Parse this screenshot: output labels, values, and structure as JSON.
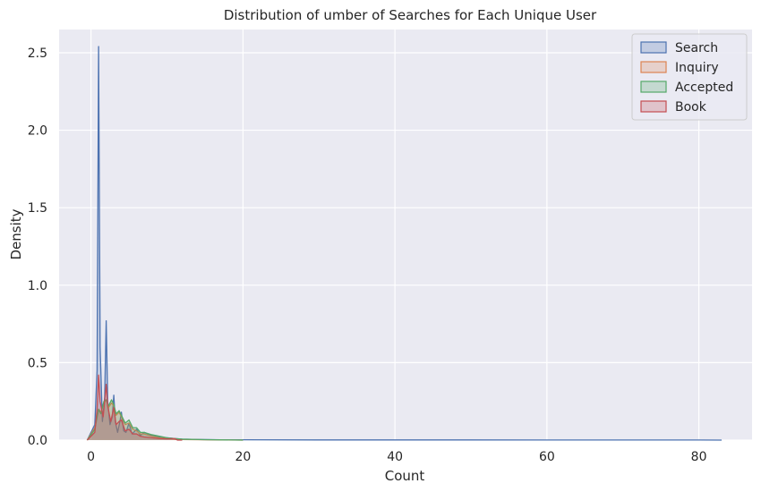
{
  "chart_data": {
    "type": "area",
    "title": "Distribution of umber of Searches for Each Unique User",
    "xlabel": "Count",
    "ylabel": "Density",
    "xlim": [
      -4.2,
      87
    ],
    "ylim": [
      0,
      2.65
    ],
    "xticks": [
      0,
      20,
      40,
      60,
      80
    ],
    "yticks": [
      0.0,
      0.5,
      1.0,
      1.5,
      2.0,
      2.5
    ],
    "xtick_labels": [
      "0",
      "20",
      "40",
      "60",
      "80"
    ],
    "ytick_labels": [
      "0.0",
      "0.5",
      "1.0",
      "1.5",
      "2.0",
      "2.5"
    ],
    "grid": true,
    "legend_position": "top-right",
    "background": "#EAEAF2",
    "series": [
      {
        "name": "Search",
        "color": "#4C72B0",
        "fill": "#4C72B0",
        "x": [
          -0.5,
          0.5,
          0.8,
          1.0,
          1.2,
          1.5,
          1.8,
          2.0,
          2.2,
          2.5,
          2.8,
          3.0,
          3.2,
          3.5,
          3.8,
          4.0,
          4.3,
          4.6,
          5.0,
          5.4,
          6.0,
          6.5,
          7.0,
          8.0,
          9.0,
          10.0,
          11.0,
          12.0,
          14.0,
          17.0,
          20.0,
          30.0,
          40.0,
          50.0,
          60.0,
          70.0,
          80.0,
          83.0
        ],
        "y": [
          0.0,
          0.1,
          0.45,
          2.54,
          0.6,
          0.12,
          0.28,
          0.77,
          0.25,
          0.1,
          0.15,
          0.29,
          0.12,
          0.05,
          0.12,
          0.18,
          0.06,
          0.05,
          0.11,
          0.04,
          0.07,
          0.03,
          0.05,
          0.03,
          0.02,
          0.015,
          0.01,
          0.006,
          0.004,
          0.002,
          0.002,
          0.001,
          0.001,
          0.001,
          0.0005,
          0.0005,
          0.0005,
          0.0
        ]
      },
      {
        "name": "Inquiry",
        "color": "#DD8452",
        "fill": "#DD8452",
        "x": [
          -0.5,
          0.5,
          1.0,
          1.3,
          1.7,
          2.0,
          2.3,
          2.7,
          3.0,
          3.3,
          3.7,
          4.0,
          4.5,
          5.0,
          5.5,
          6.0,
          6.5,
          7.0,
          8.0,
          9.0,
          10.0,
          11.0,
          12.0,
          15.0,
          20.0
        ],
        "y": [
          0.0,
          0.08,
          0.2,
          0.18,
          0.24,
          0.26,
          0.21,
          0.24,
          0.22,
          0.16,
          0.18,
          0.15,
          0.1,
          0.11,
          0.07,
          0.06,
          0.04,
          0.04,
          0.025,
          0.015,
          0.01,
          0.006,
          0.004,
          0.002,
          0.0
        ]
      },
      {
        "name": "Accepted",
        "color": "#55A868",
        "fill": "#55A868",
        "x": [
          -0.5,
          0.5,
          1.0,
          1.3,
          1.7,
          2.0,
          2.3,
          2.7,
          3.0,
          3.3,
          3.7,
          4.0,
          4.5,
          5.0,
          5.5,
          6.0,
          6.5,
          7.0,
          8.0,
          9.0,
          10.0,
          11.0,
          12.0,
          15.0,
          20.0
        ],
        "y": [
          0.0,
          0.07,
          0.2,
          0.17,
          0.25,
          0.26,
          0.22,
          0.26,
          0.23,
          0.17,
          0.19,
          0.16,
          0.11,
          0.13,
          0.08,
          0.08,
          0.05,
          0.05,
          0.035,
          0.025,
          0.015,
          0.01,
          0.006,
          0.003,
          0.0
        ]
      },
      {
        "name": "Book",
        "color": "#C44E52",
        "fill": "#C44E52",
        "x": [
          -0.5,
          0.5,
          0.8,
          1.0,
          1.2,
          1.6,
          2.0,
          2.2,
          2.6,
          3.0,
          3.3,
          3.7,
          4.0,
          4.5,
          5.0,
          5.5,
          6.0,
          6.5,
          7.0,
          8.0,
          9.0,
          10.0,
          11.0,
          11.4,
          12.0
        ],
        "y": [
          0.0,
          0.05,
          0.2,
          0.42,
          0.25,
          0.15,
          0.36,
          0.22,
          0.12,
          0.21,
          0.1,
          0.12,
          0.13,
          0.06,
          0.07,
          0.04,
          0.04,
          0.025,
          0.02,
          0.015,
          0.01,
          0.008,
          0.01,
          0.0,
          0.0
        ]
      }
    ]
  }
}
